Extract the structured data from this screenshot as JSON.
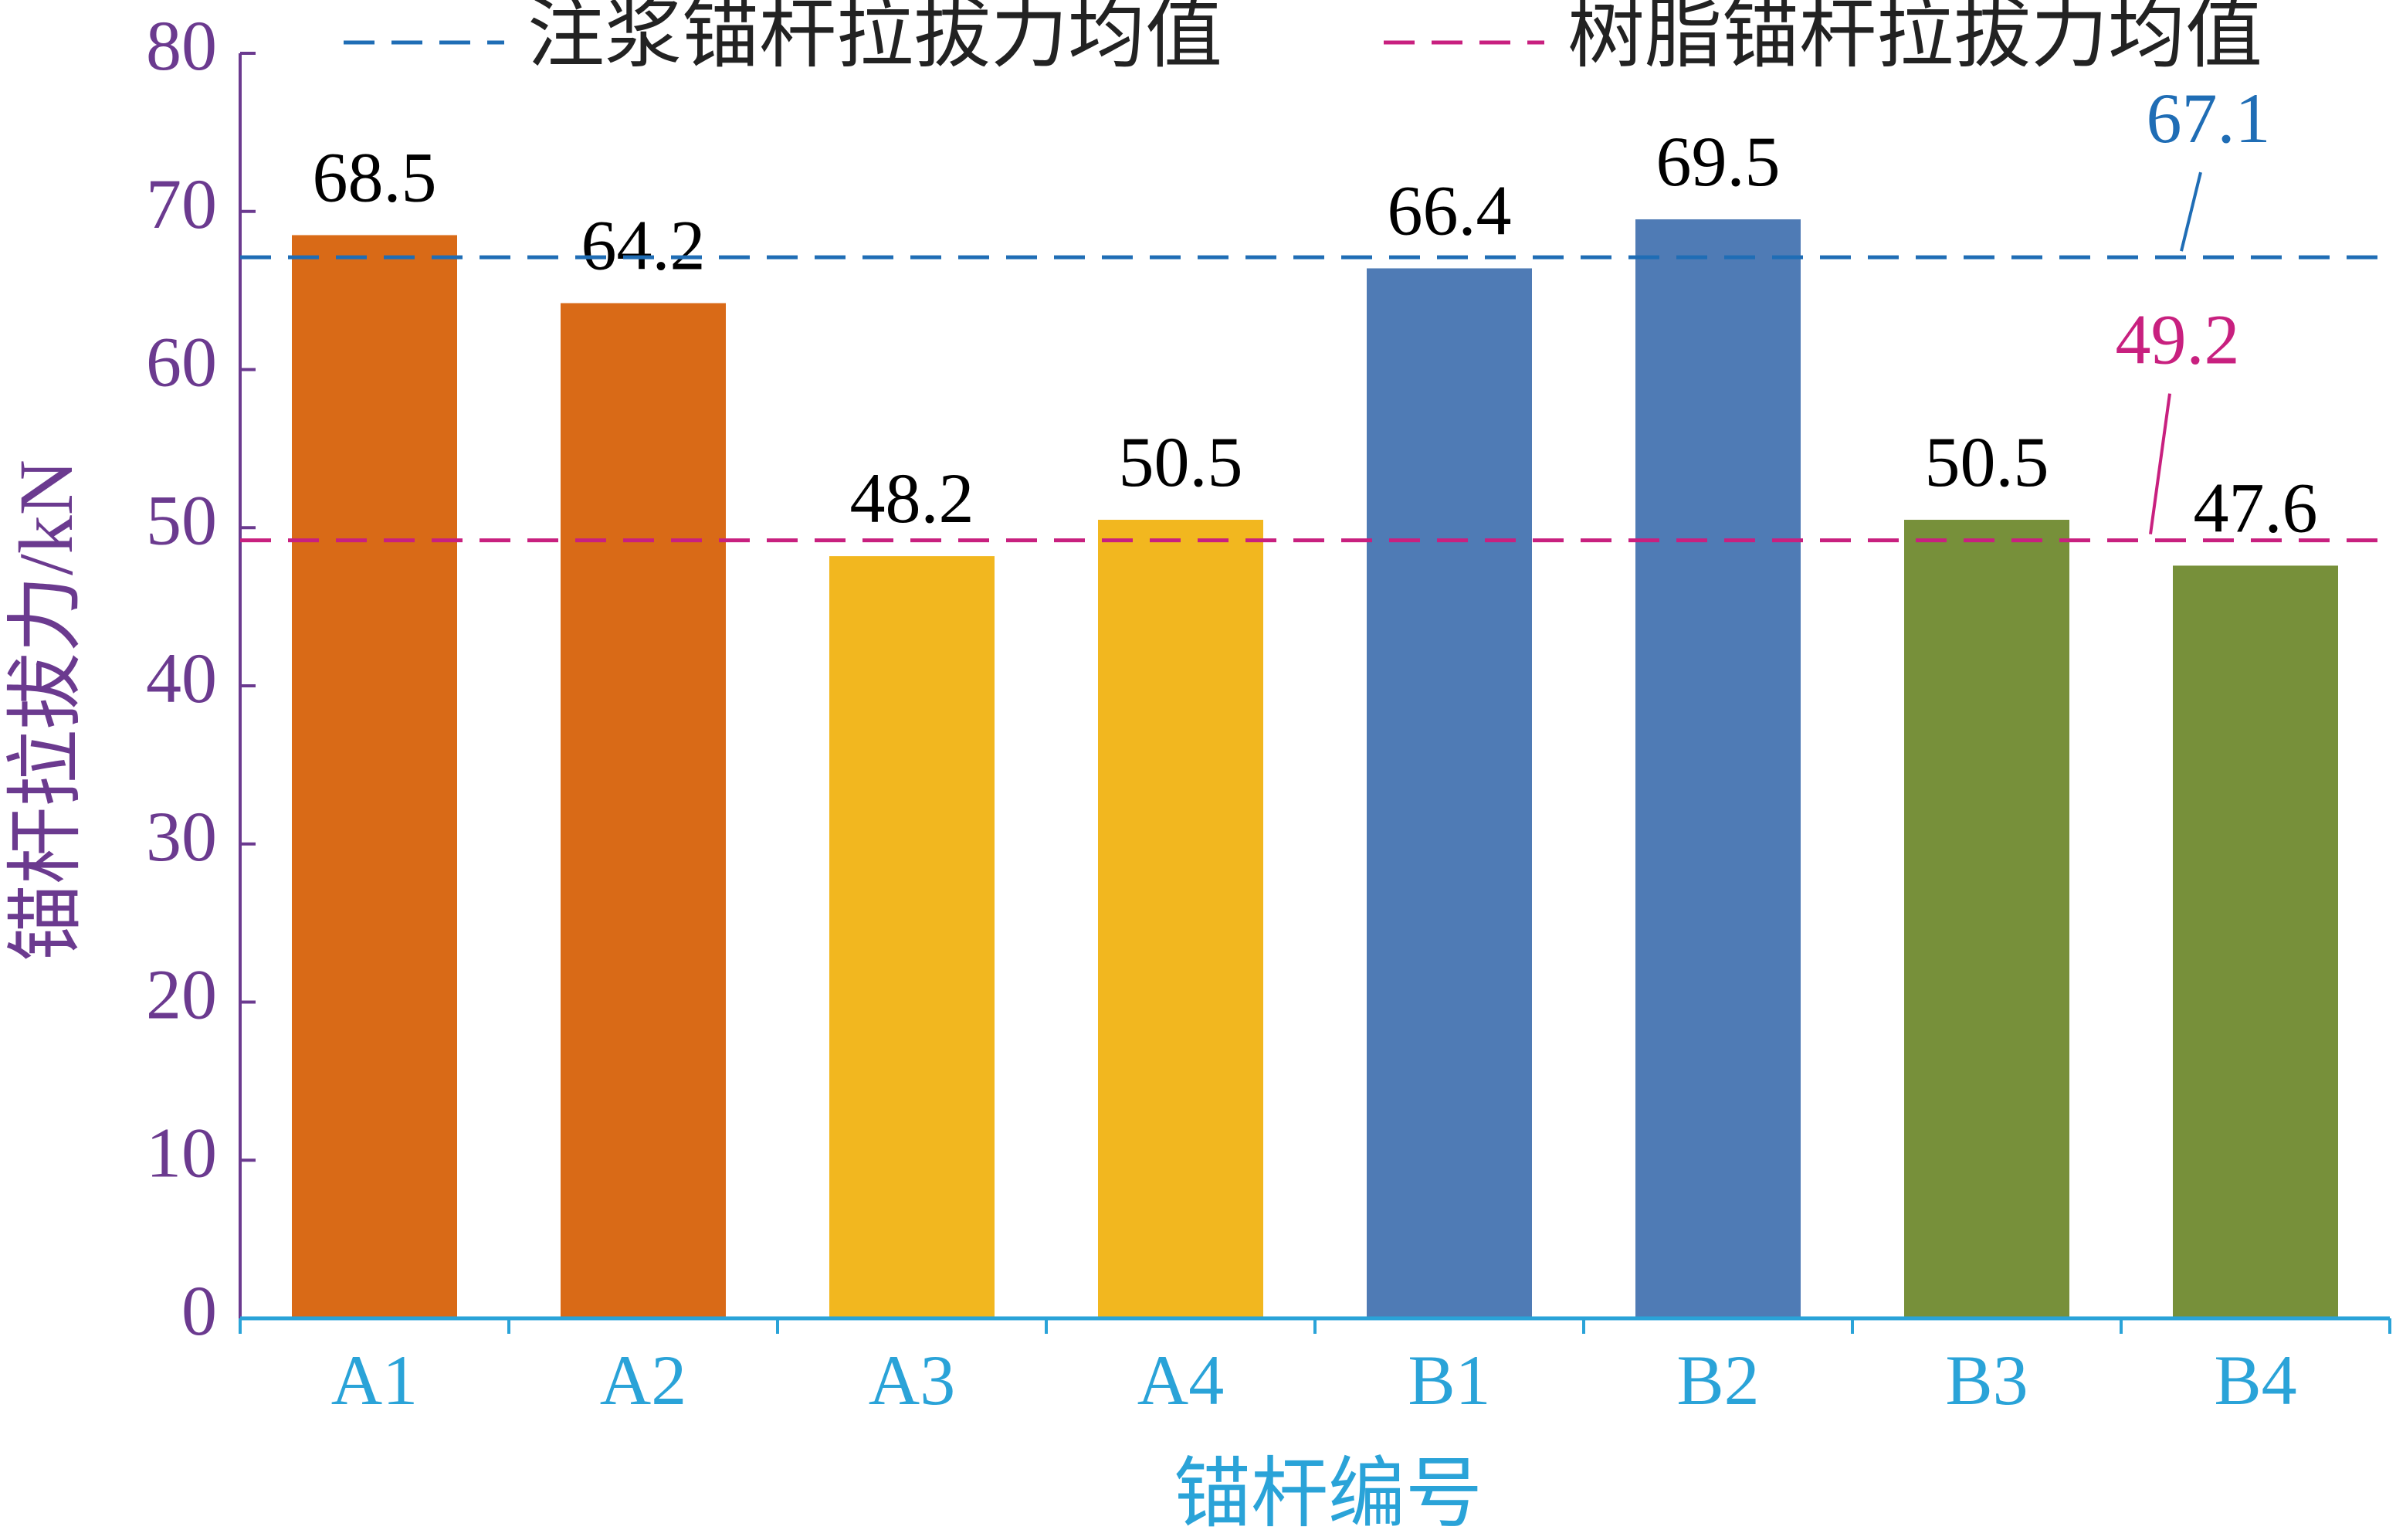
{
  "chart_data": {
    "type": "bar",
    "x_label": "锚杆编号",
    "y_label": "锚杆拉拔力/kN",
    "categories": [
      "A1",
      "A2",
      "A3",
      "A4",
      "B1",
      "B2",
      "B3",
      "B4"
    ],
    "values": [
      68.5,
      64.2,
      48.2,
      50.5,
      66.4,
      69.5,
      50.5,
      47.6
    ],
    "colors": [
      "#d96a17",
      "#d96a17",
      "#f2b71f",
      "#f2b71f",
      "#4f7bb5",
      "#4f7bb5",
      "#77903a",
      "#77903a"
    ],
    "reference_lines": [
      {
        "name": "注浆锚杆拉拔力均值",
        "value": 67.1,
        "color": "#1f6db5"
      },
      {
        "name": "树脂锚杆拉拔力均值",
        "value": 49.2,
        "color": "#c8207f"
      }
    ],
    "ylim": [
      0,
      80
    ],
    "yticks": [
      0,
      10,
      20,
      30,
      40,
      50,
      60,
      70,
      80
    ]
  }
}
